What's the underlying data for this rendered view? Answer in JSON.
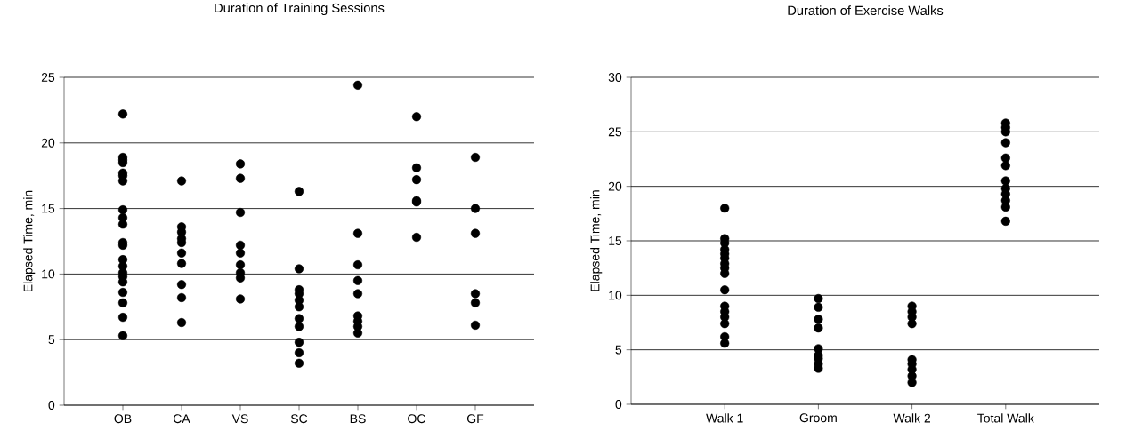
{
  "chart_data": [
    {
      "type": "scatter",
      "title": "Duration of Training Sessions",
      "ylabel": "Elapsed Time, min",
      "categories": [
        "OB",
        "CA",
        "VS",
        "SC",
        "BS",
        "OC",
        "GF"
      ],
      "ylim": [
        0,
        25
      ],
      "yticks": [
        0,
        5,
        10,
        15,
        20,
        25
      ],
      "grid": "y",
      "marker": "circle",
      "series": [
        {
          "color": "#000000",
          "x": [
            "OB",
            "OB",
            "OB",
            "OB",
            "OB",
            "OB",
            "OB",
            "OB",
            "OB",
            "OB",
            "OB",
            "OB",
            "OB",
            "OB",
            "OB",
            "OB",
            "OB",
            "OB",
            "OB",
            "OB",
            "OB",
            "CA",
            "CA",
            "CA",
            "CA",
            "CA",
            "CA",
            "CA",
            "CA",
            "CA",
            "CA",
            "VS",
            "VS",
            "VS",
            "VS",
            "VS",
            "VS",
            "VS",
            "VS",
            "VS",
            "SC",
            "SC",
            "SC",
            "SC",
            "SC",
            "SC",
            "SC",
            "SC",
            "SC",
            "SC",
            "SC",
            "BS",
            "BS",
            "BS",
            "BS",
            "BS",
            "BS",
            "BS",
            "BS",
            "BS",
            "OC",
            "OC",
            "OC",
            "OC",
            "OC",
            "OC",
            "GF",
            "GF",
            "GF",
            "GF",
            "GF",
            "GF"
          ],
          "values": [
            22.2,
            18.9,
            18.7,
            18.5,
            17.7,
            17.5,
            17.1,
            14.9,
            14.3,
            13.8,
            12.4,
            12.2,
            11.1,
            10.6,
            10.1,
            9.8,
            9.4,
            8.6,
            7.8,
            6.7,
            5.3,
            17.1,
            13.6,
            13.2,
            12.7,
            12.4,
            11.6,
            10.8,
            9.2,
            8.2,
            6.3,
            18.4,
            17.3,
            14.7,
            12.2,
            11.6,
            10.7,
            10.1,
            9.7,
            8.1,
            16.3,
            10.4,
            8.8,
            8.5,
            8.0,
            7.5,
            6.6,
            6.0,
            4.8,
            4.0,
            3.2,
            24.4,
            13.1,
            10.7,
            9.5,
            8.5,
            6.8,
            6.4,
            6.0,
            5.5,
            22.0,
            18.1,
            17.2,
            15.6,
            15.5,
            12.8,
            18.9,
            15.0,
            13.1,
            8.5,
            7.8,
            6.1
          ]
        }
      ]
    },
    {
      "type": "scatter",
      "title": "Duration of Exercise Walks",
      "ylabel": "Elapsed Time, min",
      "categories": [
        "Walk 1",
        "Groom",
        "Walk 2",
        "Total Walk"
      ],
      "ylim": [
        0,
        30
      ],
      "yticks": [
        0,
        5,
        10,
        15,
        20,
        25,
        30
      ],
      "grid": "y",
      "marker": "circle",
      "series": [
        {
          "color": "#000000",
          "x": [
            "Walk 1",
            "Walk 1",
            "Walk 1",
            "Walk 1",
            "Walk 1",
            "Walk 1",
            "Walk 1",
            "Walk 1",
            "Walk 1",
            "Walk 1",
            "Walk 1",
            "Walk 1",
            "Walk 1",
            "Walk 1",
            "Walk 1",
            "Walk 1",
            "Groom",
            "Groom",
            "Groom",
            "Groom",
            "Groom",
            "Groom",
            "Groom",
            "Groom",
            "Groom",
            "Walk 2",
            "Walk 2",
            "Walk 2",
            "Walk 2",
            "Walk 2",
            "Walk 2",
            "Walk 2",
            "Walk 2",
            "Walk 2",
            "Total Walk",
            "Total Walk",
            "Total Walk",
            "Total Walk",
            "Total Walk",
            "Total Walk",
            "Total Walk",
            "Total Walk",
            "Total Walk",
            "Total Walk",
            "Total Walk",
            "Total Walk"
          ],
          "values": [
            18.0,
            15.2,
            14.8,
            14.2,
            13.8,
            13.4,
            12.9,
            12.5,
            12.0,
            10.5,
            9.0,
            8.5,
            8.0,
            7.4,
            6.2,
            5.6,
            9.7,
            8.9,
            7.8,
            7.0,
            5.1,
            4.5,
            4.2,
            3.7,
            3.3,
            9.0,
            8.5,
            8.0,
            7.4,
            4.1,
            3.7,
            3.2,
            2.6,
            2.0,
            25.8,
            25.4,
            25.0,
            24.0,
            22.6,
            21.9,
            20.5,
            19.8,
            19.3,
            18.7,
            18.1,
            16.8
          ]
        }
      ]
    }
  ]
}
